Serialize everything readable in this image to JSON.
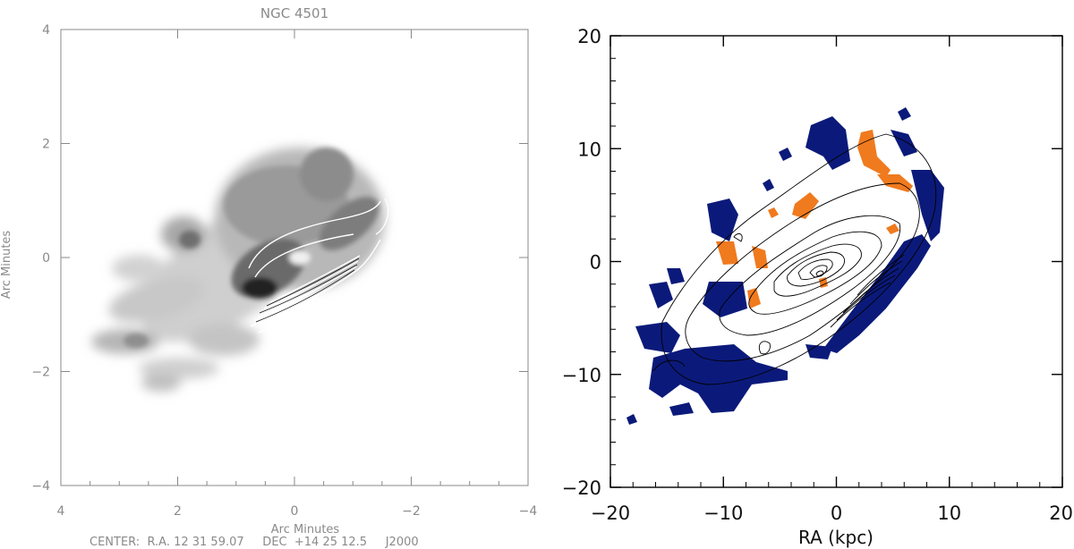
{
  "chart_data": [
    {
      "type": "contour",
      "title": "NGC 4501",
      "xlabel": "Arc Minutes",
      "ylabel": "Arc Minutes",
      "footer": "CENTER:  R.A. 12 31 59.07     DEC  +14 25 12.5     J2000",
      "xlim": [
        4,
        -4
      ],
      "ylim": [
        4,
        -4
      ],
      "x_ticks": [
        "4",
        "2",
        "0",
        "−2",
        "−4"
      ],
      "y_ticks": [
        "−4",
        "−2",
        "0",
        "2",
        "4"
      ],
      "x_tick_values": [
        4,
        2,
        0,
        -2,
        -4
      ],
      "y_tick_values": [
        -4,
        -2,
        0,
        2,
        4
      ],
      "colors": {
        "axes": "#888888",
        "text": "#8a8a8a",
        "contour": "#ffffff"
      }
    },
    {
      "type": "contour",
      "xlabel": "RA (kpc)",
      "xlim": [
        -20,
        20
      ],
      "ylim": [
        -20,
        20
      ],
      "x_ticks": [
        "−20",
        "−10",
        "0",
        "10",
        "20"
      ],
      "y_ticks": [
        "20",
        "10",
        "0",
        "−10",
        "−20"
      ],
      "x_tick_values": [
        -20,
        -10,
        0,
        10,
        20
      ],
      "y_tick_values": [
        20,
        10,
        0,
        -10,
        -20
      ],
      "colors": {
        "axes": "#000000",
        "positive": "#0b1a7a",
        "negative": "#f07a1e",
        "contour": "#000000"
      }
    }
  ]
}
